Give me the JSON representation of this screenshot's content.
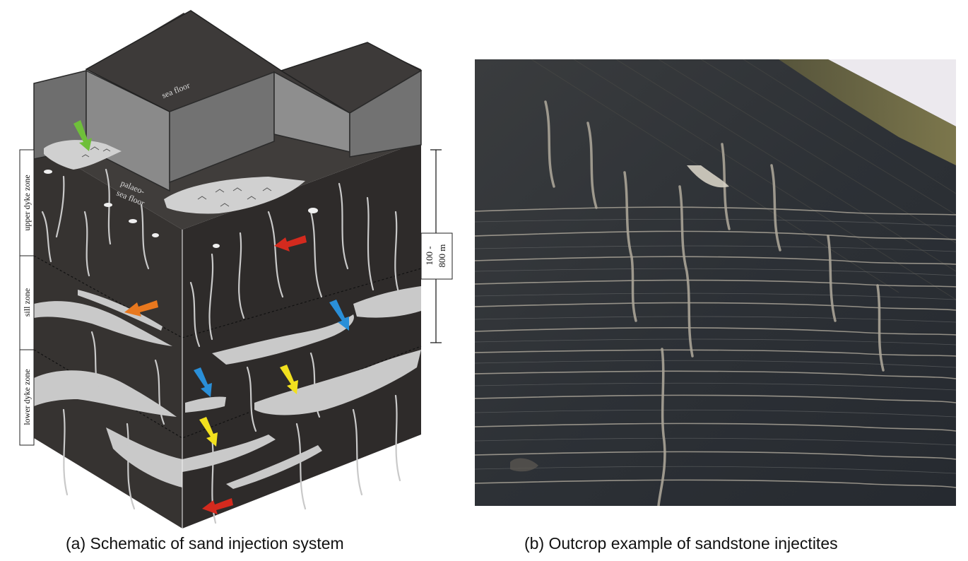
{
  "panel_a": {
    "caption": "(a) Schematic of sand injection system",
    "labels": {
      "sea_floor": "sea floor",
      "palaeo_1": "palaeo-",
      "palaeo_2": "sea floor",
      "upper_zone": "upper dyke zone",
      "sill_zone": "sill zone",
      "lower_zone": "lower dyke zone",
      "depth_1": "100 -",
      "depth_2": "800 m"
    },
    "arrow_colors": {
      "green": "#6fbf3a",
      "red": "#d42a1e",
      "orange": "#e8781e",
      "blue": "#2a8fd8",
      "yellow": "#f2e01e"
    },
    "colors": {
      "block_front": "#3b3836",
      "block_side": "#2d2a29",
      "block_top": "#4a4745",
      "wall": "#6b6b6b",
      "sand": "#c9c9c9"
    }
  },
  "panel_b": {
    "caption": "(b) Outcrop example of sandstone injectites",
    "colors": {
      "rock": "#2f3338",
      "sky": "#ece9ee",
      "vegetation": "#7a7448",
      "sandstone": "#b8b1a3"
    }
  }
}
